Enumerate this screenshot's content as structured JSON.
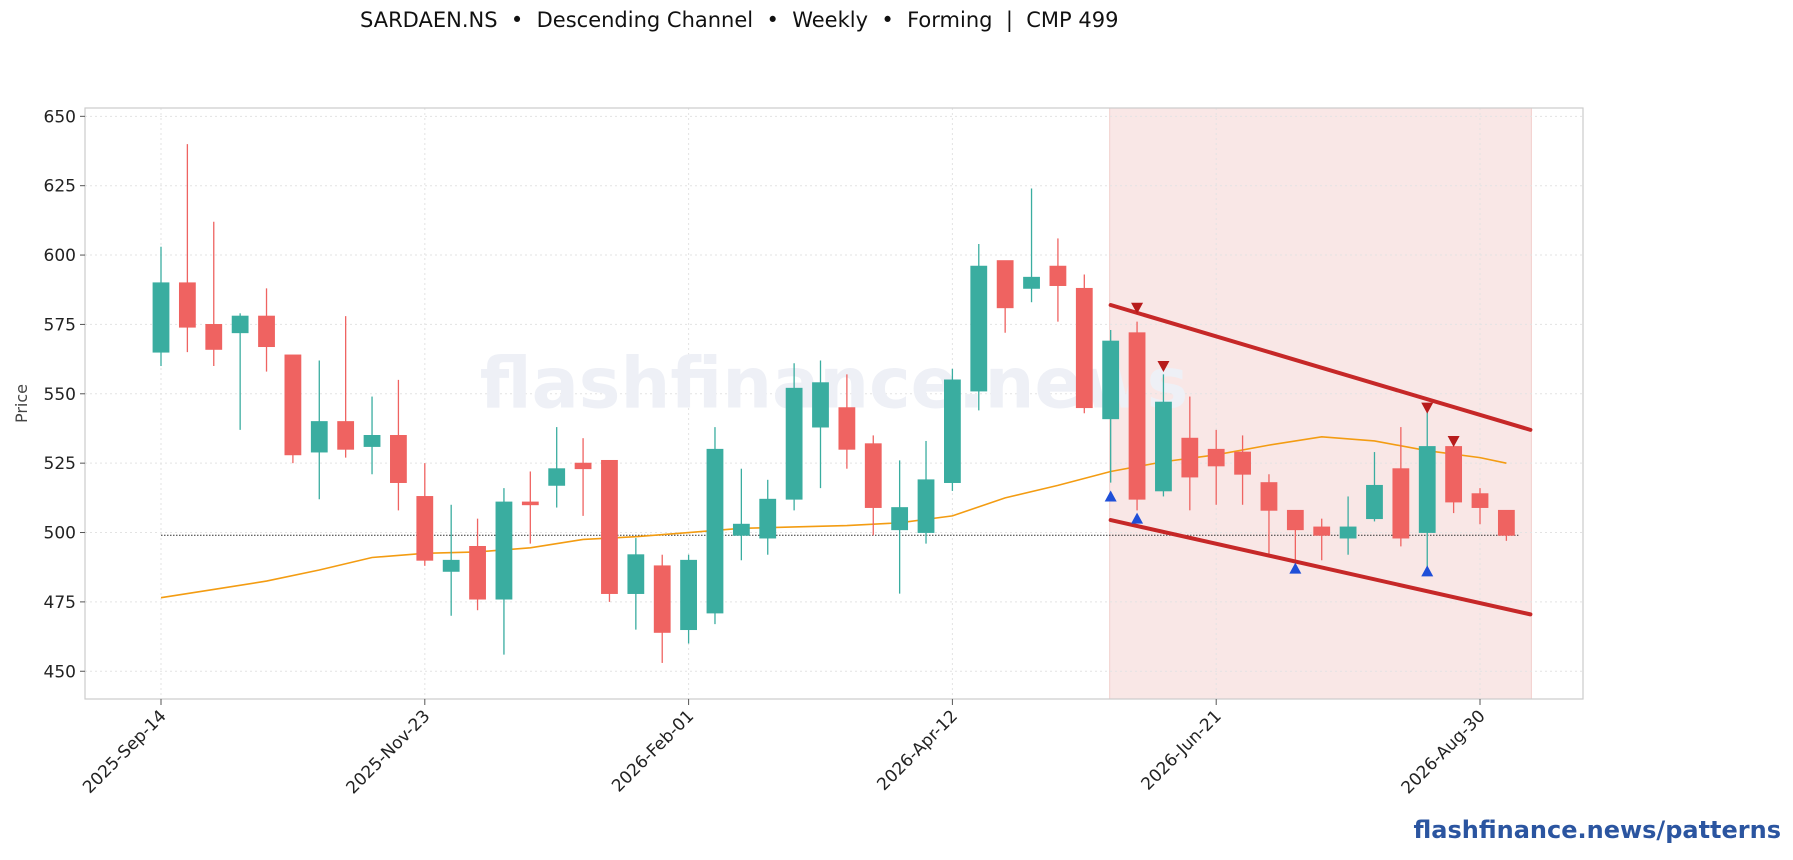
{
  "title": "SARDAEN.NS  •  Descending Channel  •  Weekly  •  Forming  |  CMP 499",
  "brand": "flashfinance.news/patterns",
  "watermark": "flashfinance.news",
  "colors": {
    "up": "#3aada0",
    "down": "#ef6361",
    "sma": "#f39c12",
    "channel": "#c62828",
    "pattern_zone": "#f9e7e6",
    "marker_low": "#1f4fd8",
    "marker_high": "#b71c1c",
    "brand": "#2b55a0"
  },
  "chart_data": {
    "type": "candlestick",
    "ylabel": "Price",
    "ylim": [
      440,
      653
    ],
    "yticks": [
      450,
      475,
      500,
      525,
      550,
      575,
      600,
      625,
      650
    ],
    "xtick_labels": [
      "2025-Sep-14",
      "2025-Nov-23",
      "2026-Feb-01",
      "2026-Apr-12",
      "2026-Jun-21",
      "2026-Aug-30"
    ],
    "xtick_index": [
      0,
      10,
      20,
      30,
      40,
      50
    ],
    "grid": true,
    "cmp": 499,
    "candles": [
      {
        "date": "2025-Sep-14",
        "o": 565,
        "h": 603,
        "l": 560,
        "c": 590
      },
      {
        "date": "2025-Sep-21",
        "o": 590,
        "h": 640,
        "l": 565,
        "c": 574
      },
      {
        "date": "2025-Sep-28",
        "o": 575,
        "h": 612,
        "l": 560,
        "c": 566
      },
      {
        "date": "2025-Oct-05",
        "o": 572,
        "h": 579,
        "l": 537,
        "c": 578
      },
      {
        "date": "2025-Oct-12",
        "o": 578,
        "h": 588,
        "l": 558,
        "c": 567
      },
      {
        "date": "2025-Oct-19",
        "o": 564,
        "h": 564,
        "l": 525,
        "c": 528
      },
      {
        "date": "2025-Oct-26",
        "o": 529,
        "h": 562,
        "l": 512,
        "c": 540
      },
      {
        "date": "2025-Nov-02",
        "o": 540,
        "h": 578,
        "l": 527,
        "c": 530
      },
      {
        "date": "2025-Nov-09",
        "o": 531,
        "h": 549,
        "l": 521,
        "c": 535
      },
      {
        "date": "2025-Nov-16",
        "o": 535,
        "h": 555,
        "l": 508,
        "c": 518
      },
      {
        "date": "2025-Nov-23",
        "o": 513,
        "h": 525,
        "l": 488,
        "c": 490
      },
      {
        "date": "2025-Nov-30",
        "o": 486,
        "h": 510,
        "l": 470,
        "c": 490
      },
      {
        "date": "2025-Dec-07",
        "o": 495,
        "h": 505,
        "l": 472,
        "c": 476
      },
      {
        "date": "2025-Dec-14",
        "o": 476,
        "h": 516,
        "l": 456,
        "c": 511
      },
      {
        "date": "2025-Dec-21",
        "o": 511,
        "h": 522,
        "l": 496,
        "c": 510
      },
      {
        "date": "2025-Dec-28",
        "o": 517,
        "h": 538,
        "l": 509,
        "c": 523
      },
      {
        "date": "2026-Jan-04",
        "o": 525,
        "h": 534,
        "l": 506,
        "c": 523
      },
      {
        "date": "2026-Jan-11",
        "o": 526,
        "h": 526,
        "l": 475,
        "c": 478
      },
      {
        "date": "2026-Jan-18",
        "o": 478,
        "h": 498,
        "l": 465,
        "c": 492
      },
      {
        "date": "2026-Jan-25",
        "o": 488,
        "h": 492,
        "l": 453,
        "c": 464
      },
      {
        "date": "2026-Feb-01",
        "o": 465,
        "h": 492,
        "l": 460,
        "c": 490
      },
      {
        "date": "2026-Feb-08",
        "o": 471,
        "h": 538,
        "l": 467,
        "c": 530
      },
      {
        "date": "2026-Feb-15",
        "o": 499,
        "h": 523,
        "l": 490,
        "c": 503
      },
      {
        "date": "2026-Feb-22",
        "o": 498,
        "h": 519,
        "l": 492,
        "c": 512
      },
      {
        "date": "2026-Mar-01",
        "o": 512,
        "h": 561,
        "l": 508,
        "c": 552
      },
      {
        "date": "2026-Mar-08",
        "o": 538,
        "h": 562,
        "l": 516,
        "c": 554
      },
      {
        "date": "2026-Mar-15",
        "o": 545,
        "h": 557,
        "l": 523,
        "c": 530
      },
      {
        "date": "2026-Mar-22",
        "o": 532,
        "h": 535,
        "l": 499,
        "c": 509
      },
      {
        "date": "2026-Mar-29",
        "o": 501,
        "h": 526,
        "l": 478,
        "c": 509
      },
      {
        "date": "2026-Apr-05",
        "o": 500,
        "h": 533,
        "l": 496,
        "c": 519
      },
      {
        "date": "2026-Apr-12",
        "o": 518,
        "h": 559,
        "l": 515,
        "c": 555
      },
      {
        "date": "2026-Apr-19",
        "o": 551,
        "h": 604,
        "l": 544,
        "c": 596
      },
      {
        "date": "2026-Apr-26",
        "o": 598,
        "h": 598,
        "l": 572,
        "c": 581
      },
      {
        "date": "2026-May-03",
        "o": 588,
        "h": 624,
        "l": 583,
        "c": 592
      },
      {
        "date": "2026-May-10",
        "o": 596,
        "h": 606,
        "l": 576,
        "c": 589
      },
      {
        "date": "2026-May-17",
        "o": 588,
        "h": 593,
        "l": 543,
        "c": 545
      },
      {
        "date": "2026-May-24",
        "o": 541,
        "h": 573,
        "l": 518,
        "c": 569
      },
      {
        "date": "2026-May-31",
        "o": 572,
        "h": 576,
        "l": 508,
        "c": 512
      },
      {
        "date": "2026-Jun-07",
        "o": 515,
        "h": 557,
        "l": 513,
        "c": 547
      },
      {
        "date": "2026-Jun-14",
        "o": 534,
        "h": 549,
        "l": 508,
        "c": 520
      },
      {
        "date": "2026-Jun-21",
        "o": 530,
        "h": 537,
        "l": 510,
        "c": 524
      },
      {
        "date": "2026-Jun-28",
        "o": 529,
        "h": 535,
        "l": 510,
        "c": 521
      },
      {
        "date": "2026-Jul-05",
        "o": 518,
        "h": 521,
        "l": 491,
        "c": 508
      },
      {
        "date": "2026-Jul-12",
        "o": 508,
        "h": 508,
        "l": 490,
        "c": 501
      },
      {
        "date": "2026-Jul-19",
        "o": 502,
        "h": 505,
        "l": 490,
        "c": 499
      },
      {
        "date": "2026-Jul-26",
        "o": 498,
        "h": 513,
        "l": 492,
        "c": 502
      },
      {
        "date": "2026-Aug-02",
        "o": 505,
        "h": 529,
        "l": 504,
        "c": 517
      },
      {
        "date": "2026-Aug-09",
        "o": 523,
        "h": 538,
        "l": 495,
        "c": 498
      },
      {
        "date": "2026-Aug-16",
        "o": 500,
        "h": 544,
        "l": 487,
        "c": 531
      },
      {
        "date": "2026-Aug-23",
        "o": 531,
        "h": 532,
        "l": 507,
        "c": 511
      },
      {
        "date": "2026-Aug-30",
        "o": 514,
        "h": 516,
        "l": 503,
        "c": 509
      },
      {
        "date": "2026-Sep-06",
        "o": 508,
        "h": 508,
        "l": 497,
        "c": 499
      }
    ],
    "sma": [
      {
        "i": 0,
        "v": 476.5
      },
      {
        "i": 2,
        "v": 479.5
      },
      {
        "i": 4,
        "v": 482.5
      },
      {
        "i": 6,
        "v": 486.5
      },
      {
        "i": 8,
        "v": 491
      },
      {
        "i": 10,
        "v": 492.5
      },
      {
        "i": 12,
        "v": 493
      },
      {
        "i": 14,
        "v": 494.5
      },
      {
        "i": 16,
        "v": 497.5
      },
      {
        "i": 18,
        "v": 498.5
      },
      {
        "i": 20,
        "v": 500
      },
      {
        "i": 22,
        "v": 501.5
      },
      {
        "i": 24,
        "v": 502
      },
      {
        "i": 26,
        "v": 502.5
      },
      {
        "i": 28,
        "v": 503.5
      },
      {
        "i": 30,
        "v": 506
      },
      {
        "i": 32,
        "v": 512.5
      },
      {
        "i": 34,
        "v": 517
      },
      {
        "i": 36,
        "v": 522
      },
      {
        "i": 38,
        "v": 525.5
      },
      {
        "i": 40,
        "v": 528
      },
      {
        "i": 42,
        "v": 531.5
      },
      {
        "i": 44,
        "v": 534.5
      },
      {
        "i": 46,
        "v": 533
      },
      {
        "i": 48,
        "v": 529.5
      },
      {
        "i": 50,
        "v": 527
      },
      {
        "i": 51,
        "v": 525
      }
    ],
    "pattern_zone": {
      "start_index": 36,
      "end_index": 51
    },
    "channel_upper": {
      "from": {
        "i": 36,
        "v": 582
      },
      "to": {
        "i": 51,
        "v": 537
      }
    },
    "channel_lower": {
      "from": {
        "i": 36,
        "v": 504.5
      },
      "to": {
        "i": 51,
        "v": 470.5
      }
    },
    "swing_highs": [
      {
        "i": 37,
        "v": 581
      },
      {
        "i": 38,
        "v": 560
      },
      {
        "i": 48,
        "v": 545
      },
      {
        "i": 49,
        "v": 533
      }
    ],
    "swing_lows": [
      {
        "i": 36,
        "v": 513
      },
      {
        "i": 37,
        "v": 505
      },
      {
        "i": 43,
        "v": 487
      },
      {
        "i": 48,
        "v": 486
      }
    ]
  }
}
